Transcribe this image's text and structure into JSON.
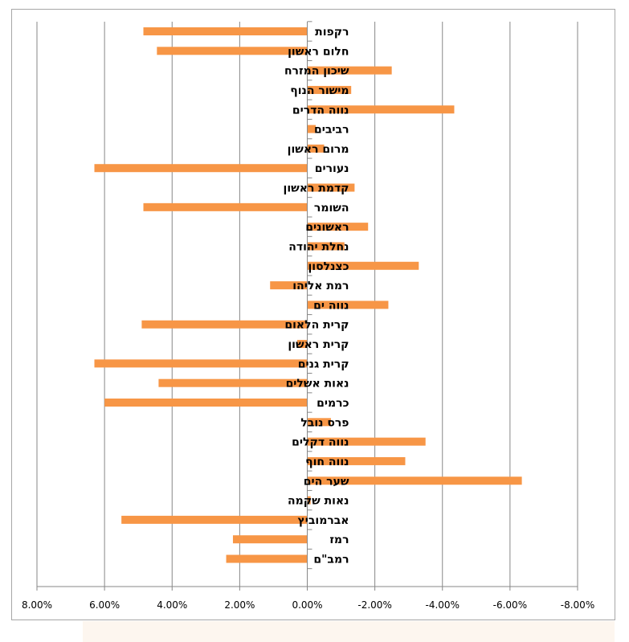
{
  "chart_data": {
    "type": "bar",
    "orientation": "horizontal",
    "x_axis_reversed": true,
    "categories": [
      "רקפות",
      "חלום ראשון",
      "שיכון המזרח",
      "מישור הנוף",
      "נווה הדרים",
      "רביבים",
      "מרום ראשון",
      "נעורים",
      "קדמת ראשון",
      "השומר",
      "ראשונים",
      "נחלת יהודה",
      "כצנלסון",
      "רמת אליהו",
      "נווה ים",
      "קרית הלאום",
      "קרית ראשון",
      "קרית גנים",
      "נאות אשלים",
      "כרמים",
      "פרס נובל",
      "נווה דקלים",
      "נווה חוף",
      "שער הים",
      "נאות שקמה",
      "אברמוביץ",
      "רמז",
      "רמב\"ם"
    ],
    "values": [
      4.85,
      4.45,
      -2.5,
      -1.3,
      -4.35,
      -0.25,
      -0.5,
      6.3,
      -1.4,
      4.85,
      -1.8,
      -1.1,
      -3.3,
      1.1,
      -2.4,
      4.9,
      0.3,
      6.3,
      4.4,
      6.0,
      -0.7,
      -3.5,
      -2.9,
      -6.35,
      -0.1,
      5.5,
      2.2,
      2.4
    ],
    "xlim": [
      8,
      -8
    ],
    "xticks": [
      "8.00%",
      "6.00%",
      "4.00%",
      "2.00%",
      "0.00%",
      "-2.00%",
      "-4.00%",
      "-6.00%",
      "-8.00%"
    ],
    "tick_values": [
      8,
      6,
      4,
      2,
      0,
      -2,
      -4,
      -6,
      -8
    ],
    "grid": true,
    "bar_color": "#f79646"
  }
}
